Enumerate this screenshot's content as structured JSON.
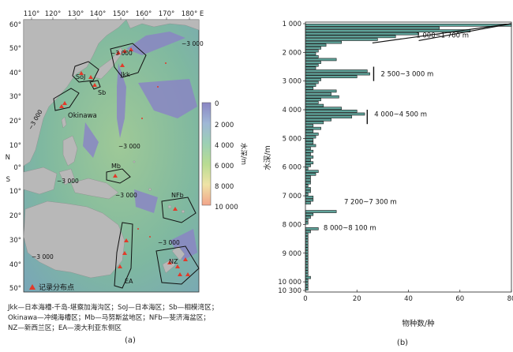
{
  "map": {
    "lon_ticks": [
      "110°",
      "120°",
      "130°",
      "140°",
      "150°",
      "160°",
      "170°",
      "180° E"
    ],
    "lat_ticks": [
      "60°",
      "50°",
      "40°",
      "30°",
      "20°",
      "10°",
      "0°",
      "10°",
      "20°",
      "30°",
      "40°",
      "50°"
    ],
    "hemisphere_north": "N",
    "hemisphere_south": "S",
    "contour_label": "−3 000",
    "regions": {
      "jkk": "Jkk",
      "soj": "SoJ",
      "sb": "Sb",
      "okinawa": "Okinawa",
      "mb": "Mb",
      "nfb": "NFb",
      "nz": "NZ",
      "ea": "EA"
    },
    "point_legend": "记录分布点",
    "colorbar": {
      "unit": "水深/m",
      "ticks": [
        "0",
        "2 000",
        "4 000",
        "6 000",
        "8 000",
        "10 000"
      ]
    },
    "caption": "(a)",
    "legend_lines": [
      "Jkk—日本海槽-千岛-堪察加海沟区；SoJ—日本海区；Sb—相模湾区；",
      "Okinawa—冲绳海槽区；Mb—马努斯盆地区；NFb—斐济海盆区；",
      "NZ—新西兰区；EA—澳大利亚东侧区"
    ]
  },
  "chart_data": {
    "type": "bar",
    "orientation": "horizontal",
    "xlabel": "物种数/种",
    "ylabel": "水深/m",
    "xlim": [
      0,
      80
    ],
    "x_ticks": [
      "0",
      "20",
      "40",
      "60",
      "80"
    ],
    "y_ticks": [
      "1 000",
      "2 000",
      "3 000",
      "4 000",
      "5 000",
      "6 000",
      "7 000",
      "8 000",
      "9 000",
      "10 000",
      "10 300"
    ],
    "bin_width_m": 100,
    "bins_start_m": [
      1000,
      1100,
      1200,
      1300,
      1400,
      1500,
      1600,
      1700,
      1800,
      1900,
      2000,
      2100,
      2200,
      2300,
      2400,
      2500,
      2600,
      2700,
      2800,
      2900,
      3000,
      3100,
      3200,
      3300,
      3400,
      3500,
      3600,
      3700,
      3800,
      3900,
      4000,
      4100,
      4200,
      4300,
      4400,
      4500,
      4600,
      4700,
      4800,
      4900,
      5000,
      5100,
      5200,
      5300,
      5400,
      5500,
      5600,
      5700,
      5800,
      5900,
      6000,
      6100,
      6200,
      6300,
      6400,
      6500,
      6600,
      6700,
      6800,
      6900,
      7000,
      7100,
      7200,
      7300,
      7400,
      7500,
      7600,
      7700,
      7800,
      7900,
      8000,
      8100,
      8200,
      8300,
      8400,
      8500,
      8600,
      8700,
      8800,
      8900,
      9000,
      9100,
      9200,
      9300,
      9400,
      9500,
      9600,
      9700,
      9800,
      9900,
      10000,
      10100,
      10200
    ],
    "values": [
      80,
      52,
      64,
      44,
      35,
      28,
      14,
      8,
      6,
      5,
      4,
      5,
      12,
      6,
      5,
      4,
      24,
      25,
      20,
      6,
      5,
      4,
      3,
      12,
      10,
      13,
      6,
      5,
      7,
      14,
      20,
      23,
      18,
      10,
      7,
      3,
      6,
      3,
      5,
      4,
      3,
      3,
      4,
      2,
      3,
      2,
      3,
      2,
      3,
      2,
      1,
      5,
      4,
      2,
      2,
      2,
      1,
      2,
      2,
      1,
      3,
      3,
      2,
      0,
      0,
      12,
      3,
      2,
      1,
      1,
      0,
      5,
      2,
      1,
      1,
      1,
      1,
      1,
      1,
      1,
      1,
      1,
      1,
      1,
      1,
      1,
      1,
      1,
      2,
      1,
      1,
      1,
      1
    ],
    "annotations": [
      {
        "label": "1 000~1 700 m",
        "from_m": 1000,
        "to_m": 1700
      },
      {
        "label": "2 500~3 000 m",
        "from_m": 2500,
        "to_m": 3000
      },
      {
        "label": "4 000~4 500 m",
        "from_m": 4000,
        "to_m": 4500
      },
      {
        "label": "7 200~7 300 m",
        "from_m": 7200,
        "to_m": 7300
      },
      {
        "label": "8 000~8 100 m",
        "from_m": 8000,
        "to_m": 8100
      }
    ],
    "caption": "(b)"
  },
  "colors": {
    "bar_fill": "#5fa39a",
    "bar_stroke": "#1a1a1a",
    "land": "#b8b8b8",
    "ocean_shallow": "#7fb8a8",
    "ocean_mid": "#8fc09a",
    "ocean_deep": "#8a8fc8",
    "point": "#e23a2a"
  }
}
